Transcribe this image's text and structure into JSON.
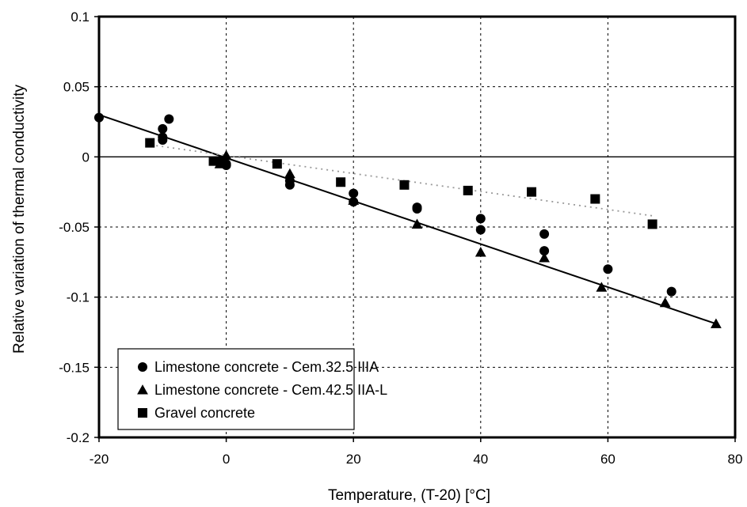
{
  "chart_data": {
    "type": "scatter",
    "xlabel": "Temperature, (T-20)  [°C]",
    "ylabel": "Relative variation of thermal conductivity",
    "xlim": [
      -20,
      80
    ],
    "ylim": [
      -0.2,
      0.1
    ],
    "xticks": [
      -20,
      0,
      20,
      40,
      60,
      80
    ],
    "yticks": [
      0.1,
      0.05,
      0,
      -0.05,
      -0.1,
      -0.15,
      -0.2
    ],
    "xtick_labels": [
      "-20",
      "0",
      "20",
      "40",
      "60",
      "80"
    ],
    "ytick_labels": [
      "0.1",
      "0.05",
      "0",
      "-0.05",
      "-0.1",
      "-0.15",
      "-0.2"
    ],
    "grid": true,
    "legend_position": "bottom-left",
    "series": [
      {
        "name": "Limestone concrete - Cem.32.5 IIIA",
        "marker": "circle",
        "x": [
          -20,
          -10,
          -10,
          -10,
          -9,
          -1,
          0,
          0,
          10,
          10,
          20,
          20,
          30,
          30,
          40,
          40,
          50,
          50,
          60,
          70
        ],
        "y": [
          0.028,
          0.02,
          0.014,
          0.012,
          0.027,
          -0.003,
          -0.005,
          -0.006,
          -0.017,
          -0.02,
          -0.026,
          -0.032,
          -0.036,
          -0.037,
          -0.044,
          -0.052,
          -0.055,
          -0.067,
          -0.08,
          -0.096
        ]
      },
      {
        "name": "Limestone concrete - Cem.42.5 IIA-L",
        "marker": "triangle",
        "x": [
          -1,
          0,
          10,
          20,
          30,
          40,
          50,
          59,
          69,
          77
        ],
        "y": [
          -0.005,
          0.001,
          -0.012,
          -0.031,
          -0.048,
          -0.068,
          -0.072,
          -0.093,
          -0.104,
          -0.119
        ]
      },
      {
        "name": "Gravel concrete",
        "marker": "square",
        "x": [
          -12,
          -2,
          8,
          18,
          28,
          38,
          48,
          58,
          67
        ],
        "y": [
          0.01,
          -0.003,
          -0.005,
          -0.018,
          -0.02,
          -0.024,
          -0.025,
          -0.03,
          -0.048
        ]
      }
    ],
    "fit_lines": [
      {
        "style": "solid",
        "x": [
          -20,
          77
        ],
        "y": [
          0.03,
          -0.119
        ]
      },
      {
        "style": "dotted",
        "x": [
          -11,
          67
        ],
        "y": [
          0.008,
          -0.042
        ]
      }
    ]
  }
}
